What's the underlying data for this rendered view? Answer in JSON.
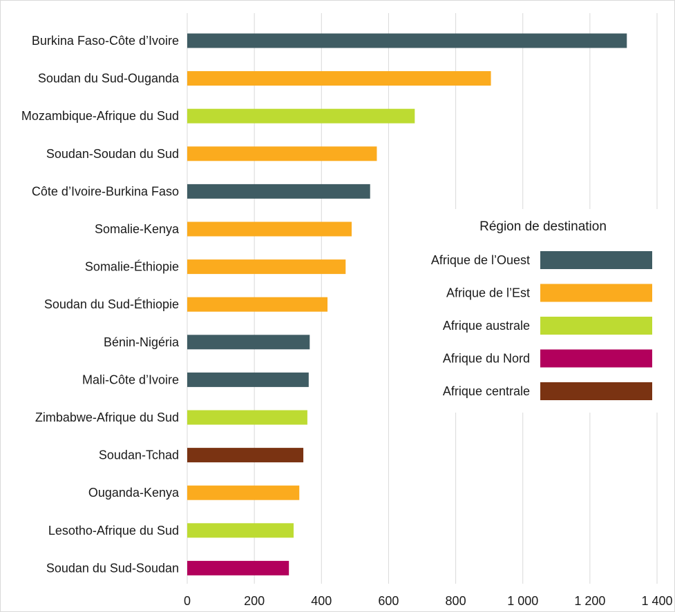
{
  "chart_data": {
    "type": "bar",
    "orientation": "horizontal",
    "categories": [
      "Burkina Faso-Côte d’Ivoire",
      "Soudan du Sud-Ouganda",
      "Mozambique-Afrique du Sud",
      "Soudan-Soudan du Sud",
      "Côte d’Ivoire-Burkina Faso",
      "Somalie-Kenya",
      "Somalie-Éthiopie",
      "Soudan du Sud-Éthiopie",
      "Bénin-Nigéria",
      "Mali-Côte d’Ivoire",
      "Zimbabwe-Afrique du Sud",
      "Soudan-Tchad",
      "Ouganda-Kenya",
      "Lesotho-Afrique du Sud",
      "Soudan du Sud-Soudan"
    ],
    "values": [
      1310,
      905,
      678,
      565,
      545,
      490,
      472,
      418,
      365,
      362,
      358,
      346,
      334,
      317,
      303
    ],
    "bar_regions": [
      "Afrique de l’Ouest",
      "Afrique de l’Est",
      "Afrique australe",
      "Afrique de l’Est",
      "Afrique de l’Ouest",
      "Afrique de l’Est",
      "Afrique de l’Est",
      "Afrique de l’Est",
      "Afrique de l’Ouest",
      "Afrique de l’Ouest",
      "Afrique australe",
      "Afrique centrale",
      "Afrique de l’Est",
      "Afrique australe",
      "Afrique du Nord"
    ],
    "xlim": [
      0,
      1400
    ],
    "x_ticks": [
      0,
      200,
      400,
      600,
      800,
      1000,
      1200,
      1400
    ],
    "x_tick_labels": [
      "0",
      "200",
      "400",
      "600",
      "800",
      "1 000",
      "1 200",
      "1 400"
    ],
    "xlabel": "",
    "ylabel": "",
    "grid": "vertical",
    "legend": {
      "title": "Région de destination",
      "placement": "right",
      "entries": [
        {
          "label": "Afrique de l’Ouest",
          "color": "#3f5c63"
        },
        {
          "label": "Afrique de l’Est",
          "color": "#fbab1e"
        },
        {
          "label": "Afrique australe",
          "color": "#bddb32"
        },
        {
          "label": "Afrique du Nord",
          "color": "#b2005c"
        },
        {
          "label": "Afrique centrale",
          "color": "#7a3312"
        }
      ]
    }
  }
}
